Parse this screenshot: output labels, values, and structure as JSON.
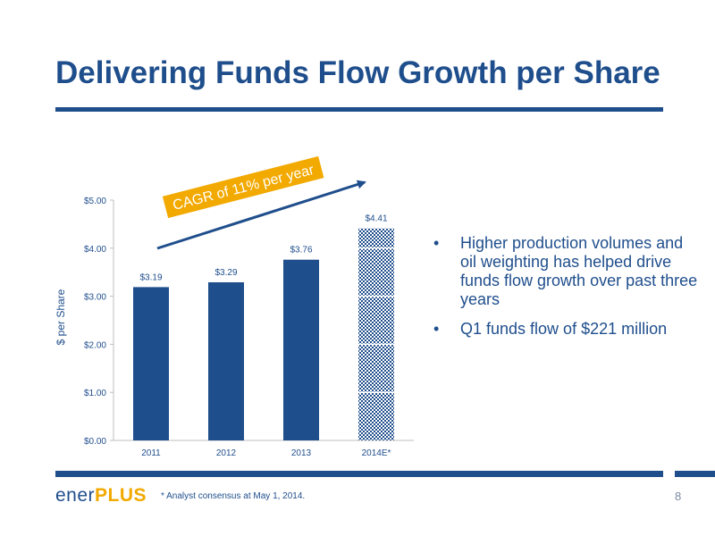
{
  "slide": {
    "title": "Delivering Funds Flow Growth per Share",
    "bullets": [
      "Higher production volumes and oil weighting has helped drive funds flow growth over past three years",
      "Q1 funds flow of $221 million"
    ],
    "bullet_symbol": "•",
    "footnote": "* Analyst consensus at May 1, 2014.",
    "page_number": "8",
    "logo": {
      "part1": "ener",
      "part2": "PLUS"
    },
    "colors": {
      "primary": "#1f4e8c",
      "accent": "#f2a900",
      "grid": "#d9d9d9"
    }
  },
  "chart_data": {
    "type": "bar",
    "categories": [
      "2011",
      "2012",
      "2013",
      "2014E*"
    ],
    "values": [
      3.19,
      3.29,
      3.76,
      4.41
    ],
    "value_labels": [
      "$3.19",
      "$3.29",
      "$3.76",
      "$4.41"
    ],
    "estimated": [
      false,
      false,
      false,
      true
    ],
    "ylabel": "$ per Share",
    "ylim": [
      0,
      5
    ],
    "yticks": [
      0,
      1,
      2,
      3,
      4,
      5
    ],
    "ytick_labels": [
      "$0.00",
      "$1.00",
      "$2.00",
      "$3.00",
      "$4.00",
      "$5.00"
    ],
    "grid": false,
    "annotation": "CAGR of 11% per year"
  }
}
